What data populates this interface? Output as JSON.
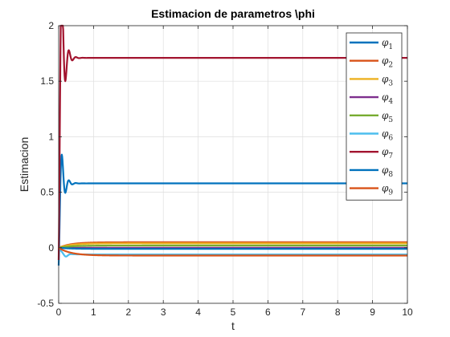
{
  "chart_data": {
    "type": "line",
    "title": "Estimacion de parametros \\phi",
    "xlabel": "t",
    "ylabel": "Estimacion",
    "xlim": [
      0,
      10
    ],
    "ylim": [
      -0.5,
      2
    ],
    "xticks": [
      "0",
      "1",
      "2",
      "3",
      "4",
      "5",
      "6",
      "7",
      "8",
      "9",
      "10"
    ],
    "yticks": [
      "-0.5",
      "0",
      "0.5",
      "1",
      "1.5",
      "2"
    ],
    "grid": true,
    "legend_position": "top-right",
    "series": [
      {
        "name": "φ1",
        "symbol": "φ",
        "sub": "1",
        "color": "#0072BD",
        "final": 0.58,
        "peak": 0.74,
        "kind": "osc"
      },
      {
        "name": "φ2",
        "symbol": "φ",
        "sub": "2",
        "color": "#D95319",
        "final": 0.05,
        "kind": "smooth"
      },
      {
        "name": "φ3",
        "symbol": "φ",
        "sub": "3",
        "color": "#EDB120",
        "final": 0.04,
        "kind": "smooth"
      },
      {
        "name": "φ4",
        "symbol": "φ",
        "sub": "4",
        "color": "#7E2F8E",
        "final": 0.0,
        "kind": "smooth"
      },
      {
        "name": "φ5",
        "symbol": "φ",
        "sub": "5",
        "color": "#77AC30",
        "final": 0.02,
        "kind": "smooth"
      },
      {
        "name": "φ6",
        "symbol": "φ",
        "sub": "6",
        "color": "#4DBEEE",
        "final": -0.06,
        "kind": "dip"
      },
      {
        "name": "φ7",
        "symbol": "φ",
        "sub": "7",
        "color": "#A2142F",
        "final": 1.71,
        "peak": 1.82,
        "kind": "osc"
      },
      {
        "name": "φ8",
        "symbol": "φ",
        "sub": "8",
        "color": "#0072BD",
        "final": -0.01,
        "kind": "smooth"
      },
      {
        "name": "φ9",
        "symbol": "φ",
        "sub": "9",
        "color": "#D95319",
        "final": -0.07,
        "kind": "smooth"
      }
    ]
  }
}
